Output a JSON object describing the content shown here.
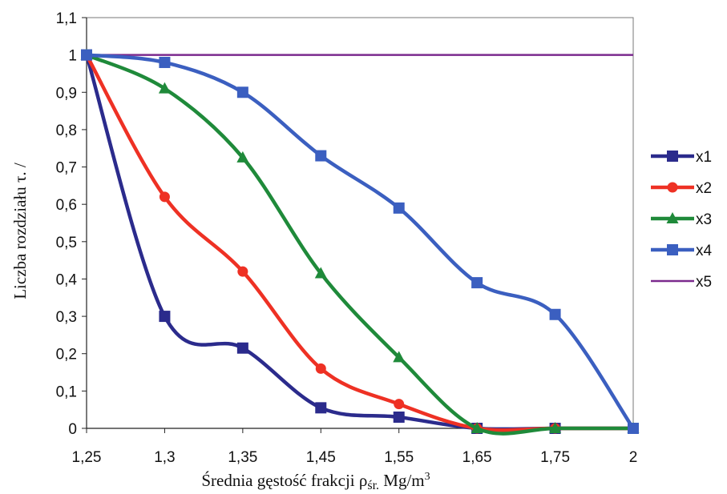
{
  "chart_data": {
    "type": "line",
    "xlabel": "Średnia gęstość frakcji ρśr. Mg/m³",
    "xlabel_main": "Średnia gęstość frakcji ρ",
    "xlabel_sub": "śr.",
    "xlabel_unit": " Mg/m",
    "xlabel_sup": "3",
    "ylabel": "Liczba rozdziału τ. /",
    "ylim": [
      0,
      1.1
    ],
    "yticks": [
      "0",
      "0,1",
      "0,2",
      "0,3",
      "0,4",
      "0,5",
      "0,6",
      "0,7",
      "0,8",
      "0,9",
      "1",
      "1,1"
    ],
    "categories": [
      "1,25",
      "1,3",
      "1,35",
      "1,45",
      "1,55",
      "1,65",
      "1,75",
      "2"
    ],
    "grid": false,
    "legend_position": "right",
    "series": [
      {
        "name": "x1",
        "color": "#2b2b8c",
        "marker": "square",
        "values": [
          1.0,
          0.3,
          0.215,
          0.055,
          0.03,
          0.0,
          0.0,
          0.0
        ]
      },
      {
        "name": "x2",
        "color": "#ee3124",
        "marker": "circle",
        "values": [
          1.0,
          0.62,
          0.42,
          0.16,
          0.065,
          0.0,
          0.0,
          0.0
        ]
      },
      {
        "name": "x3",
        "color": "#1f8a3a",
        "marker": "triangle",
        "values": [
          1.0,
          0.91,
          0.725,
          0.415,
          0.19,
          0.0,
          0.0,
          0.0
        ]
      },
      {
        "name": "x4",
        "color": "#3b5fc0",
        "marker": "square",
        "values": [
          1.0,
          0.98,
          0.9,
          0.73,
          0.59,
          0.39,
          0.305,
          0.0
        ]
      },
      {
        "name": "x5",
        "color": "#7b2a8e",
        "marker": "none",
        "values": [
          1.0,
          1.0,
          1.0,
          1.0,
          1.0,
          1.0,
          1.0,
          1.0
        ]
      }
    ]
  }
}
